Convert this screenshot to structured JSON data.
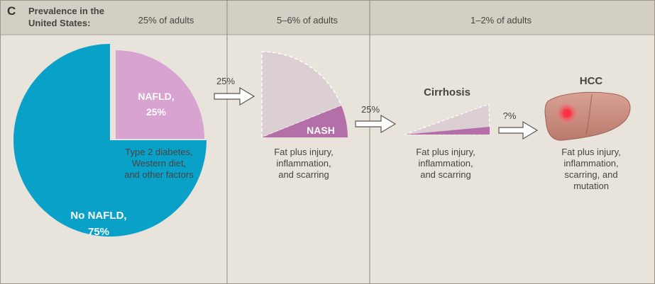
{
  "panel_letter": "C",
  "header": {
    "label_line1": "Prevalence in the",
    "label_line2": "United States:",
    "prevalence": [
      "25% of adults",
      "5–6% of adults",
      "1–2% of adults"
    ]
  },
  "overall": {
    "nafld_label": "NAFLD,",
    "nafld_pct": "25%",
    "no_nafld_label": "No NAFLD,",
    "no_nafld_pct": "75%",
    "nafld_value": 25,
    "no_nafld_value": 75
  },
  "nafld_caption": [
    "Type 2 diabetes,",
    "Western diet,",
    "and other factors"
  ],
  "arrows": [
    "25%",
    "25%",
    "?%"
  ],
  "nash": {
    "label": "NASH",
    "caption": [
      "Fat plus injury,",
      "inflammation,",
      "and scarring"
    ]
  },
  "cirrhosis": {
    "title": "Cirrhosis",
    "caption": [
      "Fat plus injury,",
      "inflammation,",
      "and scarring"
    ]
  },
  "hcc": {
    "title": "HCC",
    "caption": [
      "Fat plus injury,",
      "inflammation,",
      "scarring, and",
      "mutation"
    ]
  },
  "colors": {
    "background": "#e8e4dc",
    "header_band": "#d4cfc4",
    "no_nafld": "#0aa1c9",
    "nafld": "#d8a3d0",
    "nash": "#b56fa8",
    "faded_wedge": "#dccfd3",
    "liver": "#c98b7d",
    "tumor": "#e8384a",
    "text_dark": "#4a4340"
  }
}
